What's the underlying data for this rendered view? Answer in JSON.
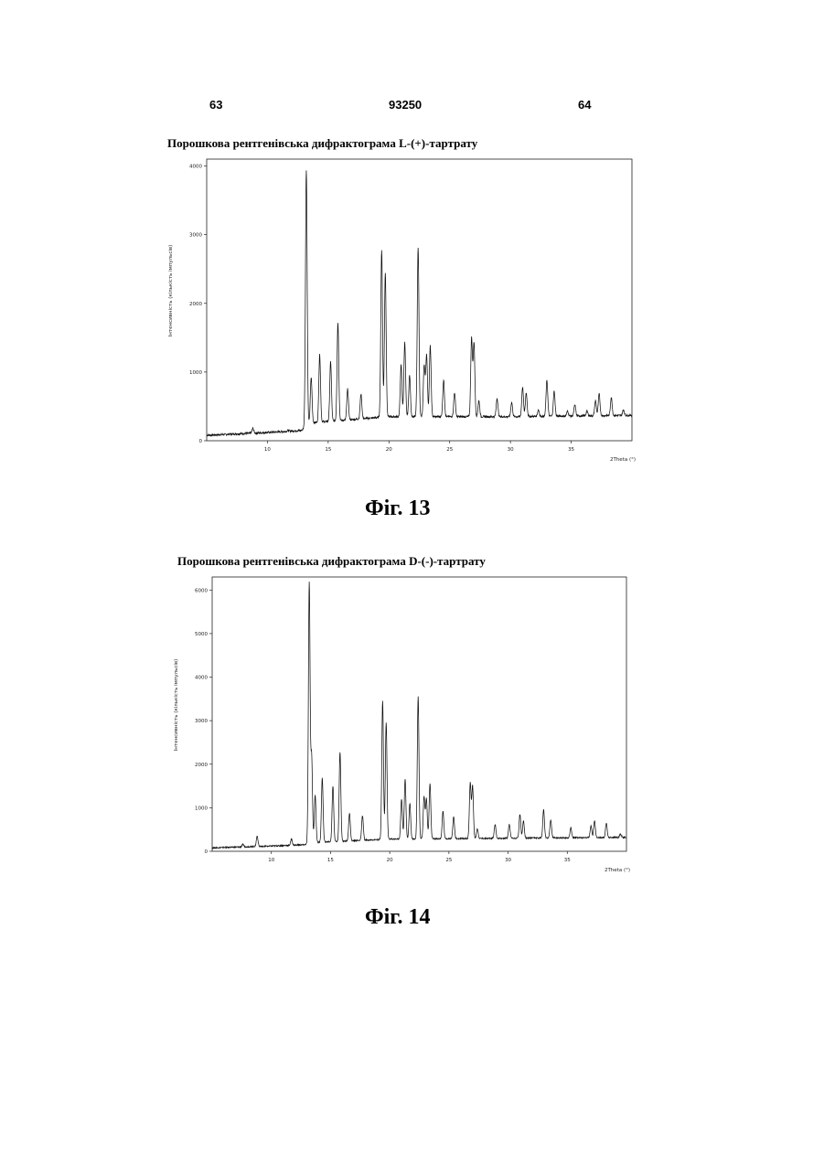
{
  "header": {
    "page_left": "63",
    "doc_number": "93250",
    "page_right": "64"
  },
  "figures": [
    {
      "title": "Порошкова рентгенівська дифрактограма L-(+)-тартрату",
      "caption": "Фіг. 13"
    },
    {
      "title": "Порошкова рентгенівська дифрактограма D-(-)-тартрату",
      "caption": "Фіг. 14"
    }
  ],
  "chart_data": [
    {
      "type": "line",
      "title": "Порошкова рентгенівська дифрактограма L-(+)-тартрату",
      "xlabel": "2Theta (°)",
      "ylabel": "Інтенсивність (кількість імпульсів)",
      "xlim": [
        5,
        40
      ],
      "ylim": [
        0,
        4100
      ],
      "xticks": [
        10,
        15,
        20,
        25,
        30,
        35
      ],
      "yticks": [
        0,
        1000,
        2000,
        3000,
        4000
      ],
      "baseline": [
        [
          5,
          80
        ],
        [
          10,
          120
        ],
        [
          12.8,
          150
        ],
        [
          13.5,
          260
        ],
        [
          20,
          350
        ],
        [
          30,
          350
        ],
        [
          40,
          370
        ]
      ],
      "peaks": [
        {
          "x": 8.8,
          "y": 180
        },
        {
          "x": 11.7,
          "y": 150
        },
        {
          "x": 13.2,
          "y": 3950
        },
        {
          "x": 13.6,
          "y": 920
        },
        {
          "x": 14.3,
          "y": 1250
        },
        {
          "x": 15.2,
          "y": 1150
        },
        {
          "x": 15.8,
          "y": 1720
        },
        {
          "x": 16.6,
          "y": 750
        },
        {
          "x": 17.7,
          "y": 680
        },
        {
          "x": 19.4,
          "y": 2780
        },
        {
          "x": 19.7,
          "y": 2450
        },
        {
          "x": 21.0,
          "y": 1100
        },
        {
          "x": 21.3,
          "y": 1430
        },
        {
          "x": 21.7,
          "y": 950
        },
        {
          "x": 22.4,
          "y": 2820
        },
        {
          "x": 22.9,
          "y": 1100
        },
        {
          "x": 23.1,
          "y": 1250
        },
        {
          "x": 23.4,
          "y": 1380
        },
        {
          "x": 24.5,
          "y": 880
        },
        {
          "x": 25.4,
          "y": 700
        },
        {
          "x": 26.8,
          "y": 1490
        },
        {
          "x": 27.0,
          "y": 1420
        },
        {
          "x": 27.4,
          "y": 580
        },
        {
          "x": 28.9,
          "y": 620
        },
        {
          "x": 30.1,
          "y": 560
        },
        {
          "x": 31.0,
          "y": 780
        },
        {
          "x": 31.3,
          "y": 700
        },
        {
          "x": 32.3,
          "y": 450
        },
        {
          "x": 33.0,
          "y": 880
        },
        {
          "x": 33.6,
          "y": 720
        },
        {
          "x": 34.7,
          "y": 430
        },
        {
          "x": 35.3,
          "y": 520
        },
        {
          "x": 36.3,
          "y": 430
        },
        {
          "x": 37.0,
          "y": 580
        },
        {
          "x": 37.3,
          "y": 680
        },
        {
          "x": 38.3,
          "y": 630
        },
        {
          "x": 39.3,
          "y": 450
        }
      ]
    },
    {
      "type": "line",
      "title": "Порошкова рентгенівська дифрактограма D-(-)-тартрату",
      "xlabel": "2Theta (°)",
      "ylabel": "Інтенсивність (кількість імпульсів)",
      "xlim": [
        5,
        40
      ],
      "ylim": [
        0,
        6300
      ],
      "xticks": [
        10,
        15,
        20,
        25,
        30,
        35
      ],
      "yticks": [
        0,
        1000,
        2000,
        3000,
        4000,
        5000,
        6000
      ],
      "baseline": [
        [
          5,
          80
        ],
        [
          10,
          120
        ],
        [
          12.8,
          150
        ],
        [
          13.5,
          200
        ],
        [
          20,
          280
        ],
        [
          30,
          300
        ],
        [
          40,
          320
        ]
      ],
      "peaks": [
        {
          "x": 7.6,
          "y": 160
        },
        {
          "x": 8.8,
          "y": 350
        },
        {
          "x": 11.7,
          "y": 280
        },
        {
          "x": 13.2,
          "y": 6150
        },
        {
          "x": 13.4,
          "y": 2200
        },
        {
          "x": 13.7,
          "y": 1300
        },
        {
          "x": 14.3,
          "y": 1680
        },
        {
          "x": 15.2,
          "y": 1500
        },
        {
          "x": 15.8,
          "y": 2280
        },
        {
          "x": 16.6,
          "y": 880
        },
        {
          "x": 17.7,
          "y": 820
        },
        {
          "x": 19.4,
          "y": 3450
        },
        {
          "x": 19.7,
          "y": 2950
        },
        {
          "x": 21.0,
          "y": 1200
        },
        {
          "x": 21.3,
          "y": 1650
        },
        {
          "x": 21.7,
          "y": 1100
        },
        {
          "x": 22.4,
          "y": 3550
        },
        {
          "x": 22.9,
          "y": 1250
        },
        {
          "x": 23.1,
          "y": 1200
        },
        {
          "x": 23.4,
          "y": 1550
        },
        {
          "x": 24.5,
          "y": 920
        },
        {
          "x": 25.4,
          "y": 780
        },
        {
          "x": 26.8,
          "y": 1560
        },
        {
          "x": 27.0,
          "y": 1500
        },
        {
          "x": 27.4,
          "y": 520
        },
        {
          "x": 28.9,
          "y": 620
        },
        {
          "x": 30.1,
          "y": 620
        },
        {
          "x": 31.0,
          "y": 850
        },
        {
          "x": 31.3,
          "y": 700
        },
        {
          "x": 33.0,
          "y": 960
        },
        {
          "x": 33.6,
          "y": 720
        },
        {
          "x": 35.3,
          "y": 540
        },
        {
          "x": 37.0,
          "y": 580
        },
        {
          "x": 37.3,
          "y": 700
        },
        {
          "x": 38.3,
          "y": 640
        },
        {
          "x": 39.5,
          "y": 400
        }
      ]
    }
  ]
}
